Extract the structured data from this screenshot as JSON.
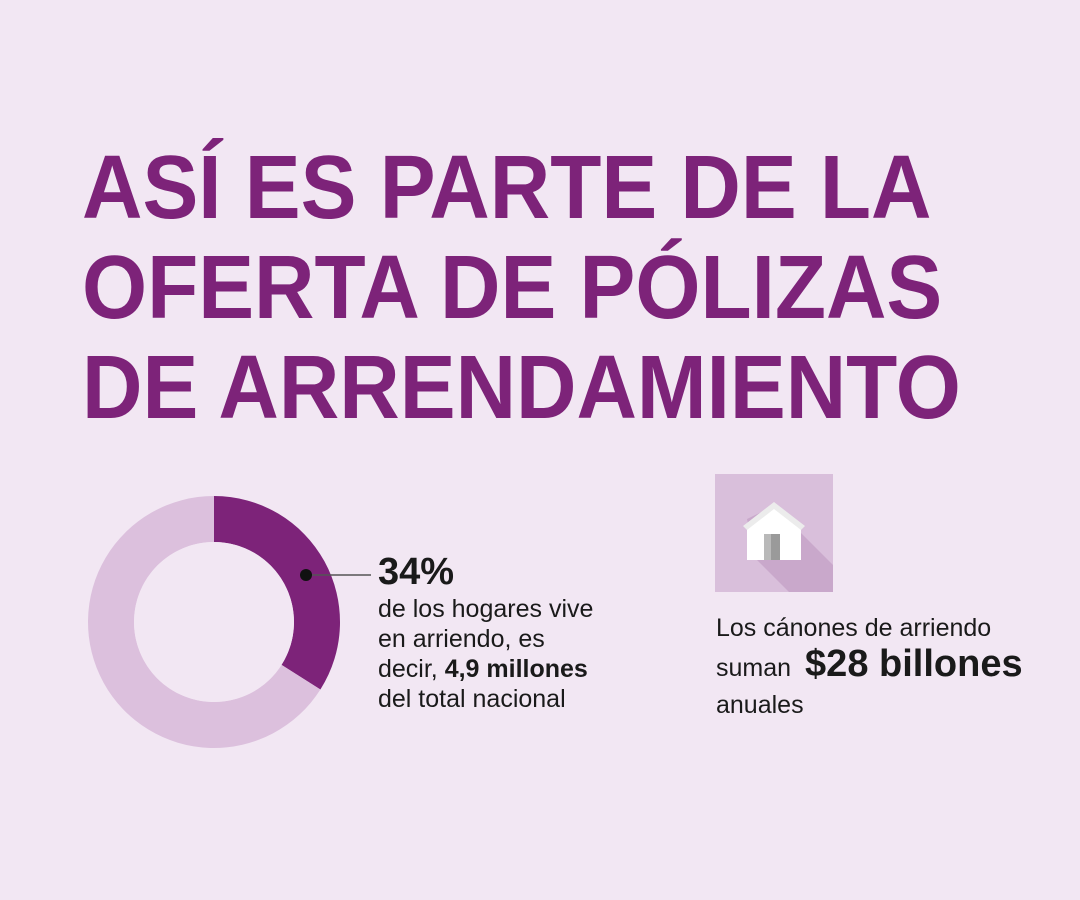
{
  "title": {
    "line1": "ASÍ ES PARTE DE LA",
    "line2": "OFERTA DE PÓLIZAS",
    "line3": "DE ARRENDAMIENTO"
  },
  "chart_data": {
    "type": "pie",
    "variant": "donut",
    "values": [
      34,
      66
    ],
    "unit": "%",
    "colors": [
      "#7d2379",
      "#dcc0dd"
    ]
  },
  "stat": {
    "percent": "34%",
    "desc_line1": "de los hogares vive",
    "desc_line2": "en arriendo, es",
    "desc_line3_pre": "decir, ",
    "desc_line3_bold": "4,9 millones",
    "desc_line4": "del total nacional"
  },
  "rent": {
    "line1": "Los cánones de arriendo",
    "line2_pre": "suman",
    "amount": "$28 billones",
    "line3": "anuales",
    "icon": "house-icon"
  },
  "colors": {
    "background": "#f2e7f3",
    "accent": "#7d2379",
    "light": "#dcc0dd",
    "text": "#1a1a1a"
  }
}
